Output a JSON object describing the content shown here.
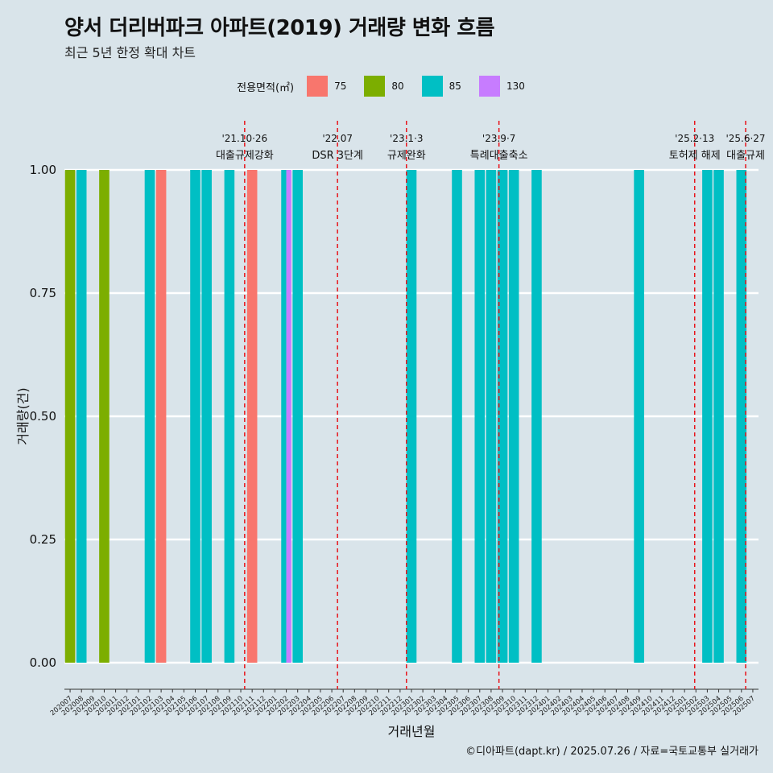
{
  "title": "양서 더리버파크 아파트(2019) 거래량 변화 흐름",
  "subtitle": "최근 5년 한정 확대 차트",
  "caption": "©디아파트(dapt.kr) / 2025.07.26 / 자료=국토교통부 실거래가",
  "legend": {
    "title": "전용면적(㎡)",
    "items": [
      {
        "label": "75",
        "color": "#f8766d"
      },
      {
        "label": "80",
        "color": "#7cae00"
      },
      {
        "label": "85",
        "color": "#00bfc4"
      },
      {
        "label": "130",
        "color": "#c77cff"
      }
    ]
  },
  "chart_data": {
    "type": "bar",
    "stacking": "dodge",
    "xlabel": "거래년월",
    "ylabel": "거래량(건)",
    "ylim": [
      0,
      1
    ],
    "yticks": [
      "0.00",
      "0.25",
      "0.50",
      "0.75",
      "1.00"
    ],
    "categories": [
      "202007",
      "202008",
      "202009",
      "202010",
      "202011",
      "202012",
      "202101",
      "202102",
      "202103",
      "202104",
      "202105",
      "202106",
      "202107",
      "202108",
      "202109",
      "202110",
      "202111",
      "202112",
      "202201",
      "202202",
      "202203",
      "202204",
      "202205",
      "202206",
      "202207",
      "202208",
      "202209",
      "202210",
      "202211",
      "202212",
      "202301",
      "202302",
      "202303",
      "202304",
      "202305",
      "202306",
      "202307",
      "202308",
      "202309",
      "202310",
      "202311",
      "202312",
      "202401",
      "202402",
      "202403",
      "202404",
      "202405",
      "202406",
      "202407",
      "202408",
      "202409",
      "202410",
      "202411",
      "202412",
      "202501",
      "202502",
      "202503",
      "202504",
      "202505",
      "202506",
      "202507"
    ],
    "bars": [
      {
        "month": "202007",
        "group": "80",
        "value": 1
      },
      {
        "month": "202008",
        "group": "85",
        "value": 1
      },
      {
        "month": "202010",
        "group": "80",
        "value": 1
      },
      {
        "month": "202102",
        "group": "85",
        "value": 1
      },
      {
        "month": "202103",
        "group": "75",
        "value": 1
      },
      {
        "month": "202106",
        "group": "85",
        "value": 1
      },
      {
        "month": "202107",
        "group": "85",
        "value": 1
      },
      {
        "month": "202109",
        "group": "85",
        "value": 1
      },
      {
        "month": "202111",
        "group": "75",
        "value": 1
      },
      {
        "month": "202202",
        "group": "85",
        "value": 1
      },
      {
        "month": "202202",
        "group": "130",
        "value": 1
      },
      {
        "month": "202203",
        "group": "85",
        "value": 1
      },
      {
        "month": "202301",
        "group": "85",
        "value": 1
      },
      {
        "month": "202305",
        "group": "85",
        "value": 1
      },
      {
        "month": "202307",
        "group": "85",
        "value": 1
      },
      {
        "month": "202308",
        "group": "85",
        "value": 1
      },
      {
        "month": "202309",
        "group": "85",
        "value": 1
      },
      {
        "month": "202310",
        "group": "85",
        "value": 1
      },
      {
        "month": "202312",
        "group": "85",
        "value": 1
      },
      {
        "month": "202409",
        "group": "85",
        "value": 1
      },
      {
        "month": "202503",
        "group": "85",
        "value": 1
      },
      {
        "month": "202504",
        "group": "85",
        "value": 1
      },
      {
        "month": "202506",
        "group": "85",
        "value": 1
      }
    ],
    "events": [
      {
        "month": "202110",
        "offset": 0.84,
        "line1": "'21.10·26",
        "line2": "대출규제강화"
      },
      {
        "month": "202207",
        "offset": 0.0,
        "line1": "'22.07",
        "line2": "DSR 3단계"
      },
      {
        "month": "202301",
        "offset": 0.06,
        "line1": "'23.1·3",
        "line2": "규제완화"
      },
      {
        "month": "202309",
        "offset": 0.19,
        "line1": "'23.9·7",
        "line2": "특례대출축소"
      },
      {
        "month": "202502",
        "offset": 0.39,
        "line1": "'25.2·13",
        "line2": "토허제 해제"
      },
      {
        "month": "202506",
        "offset": 0.87,
        "line1": "'25.6·27",
        "line2": "대출규제"
      }
    ]
  }
}
